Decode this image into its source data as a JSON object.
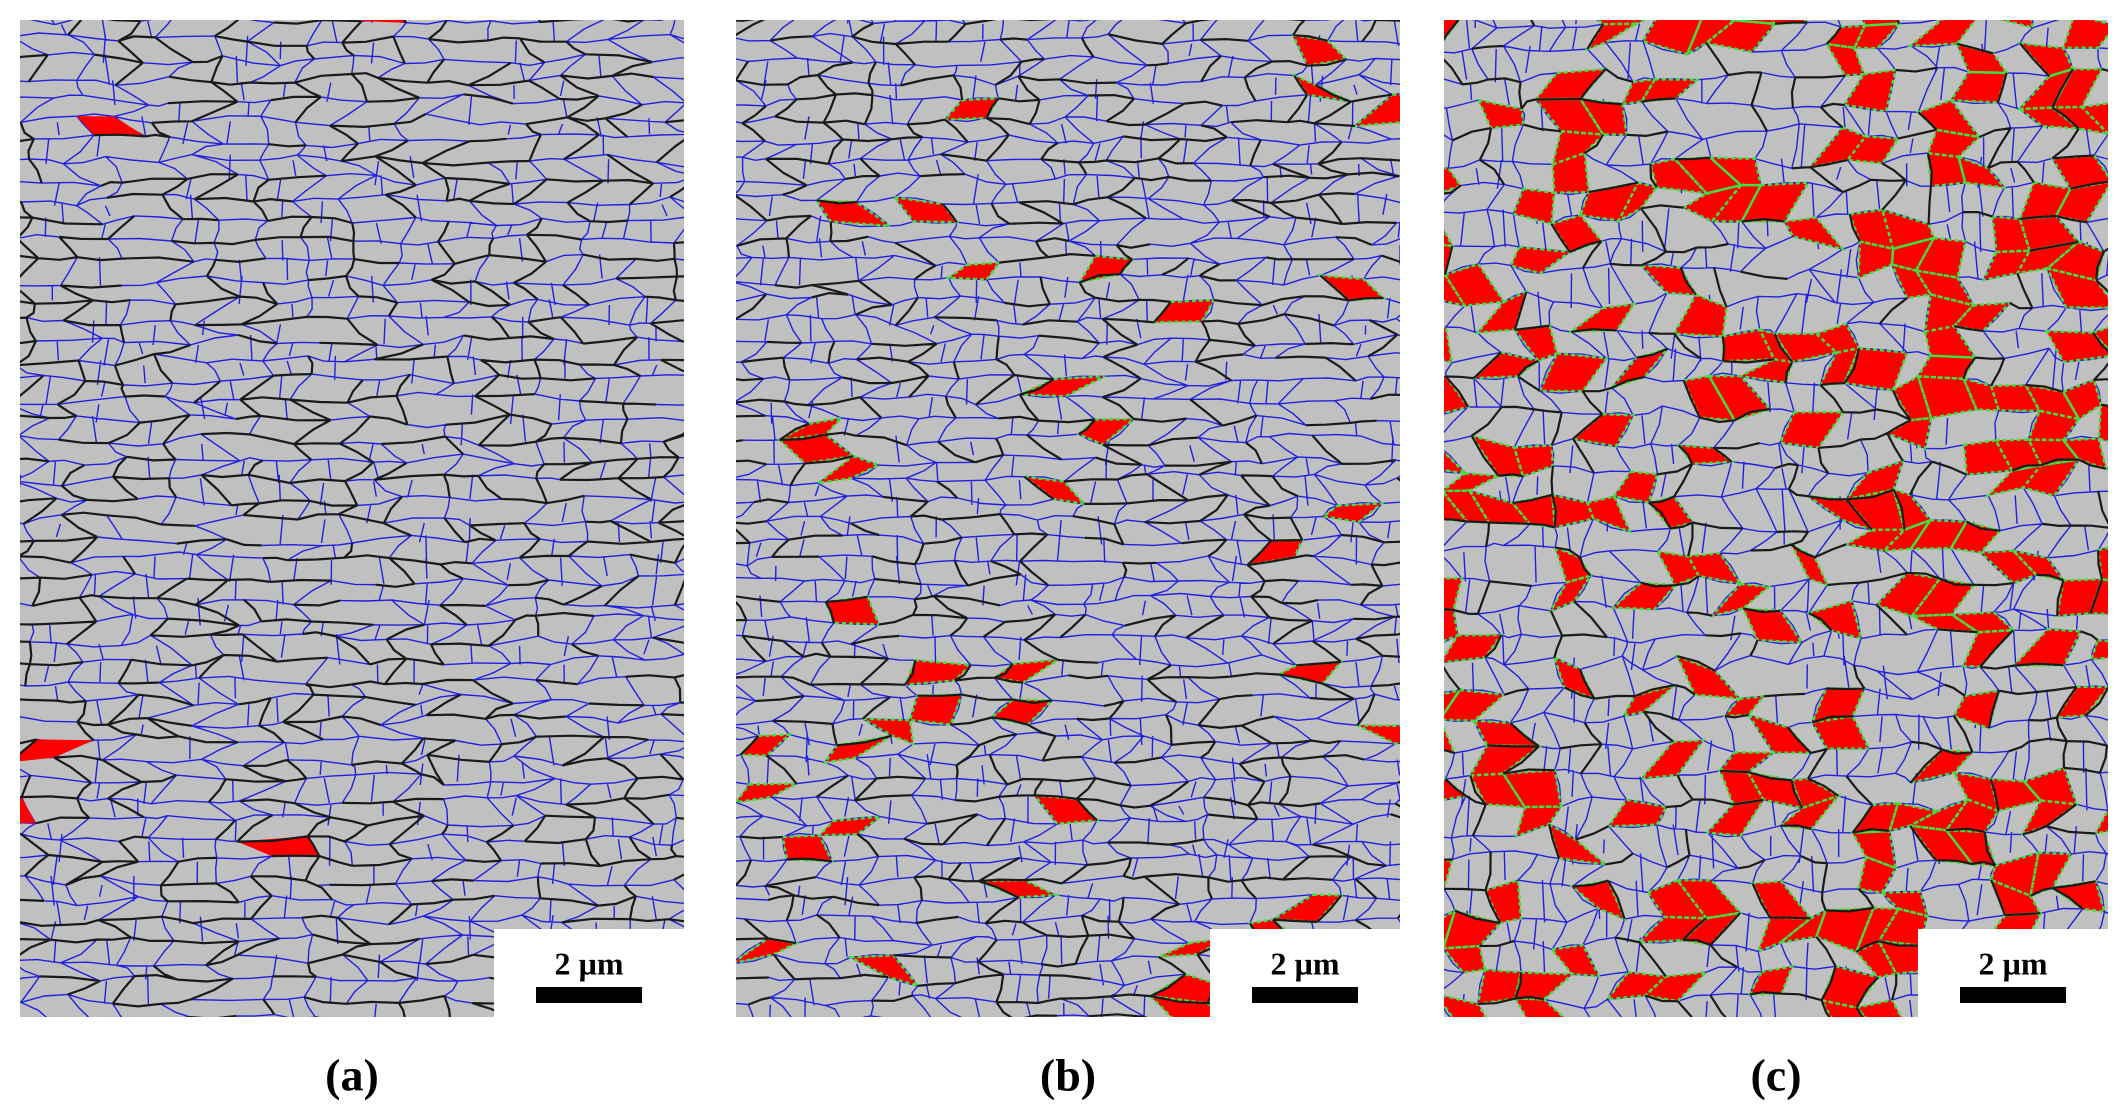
{
  "panels": [
    {
      "label": "(a)",
      "scale_bar": "2 µm"
    },
    {
      "label": "(b)",
      "scale_bar": "2 µm"
    },
    {
      "label": "(c)",
      "scale_bar": "2 µm"
    }
  ]
}
